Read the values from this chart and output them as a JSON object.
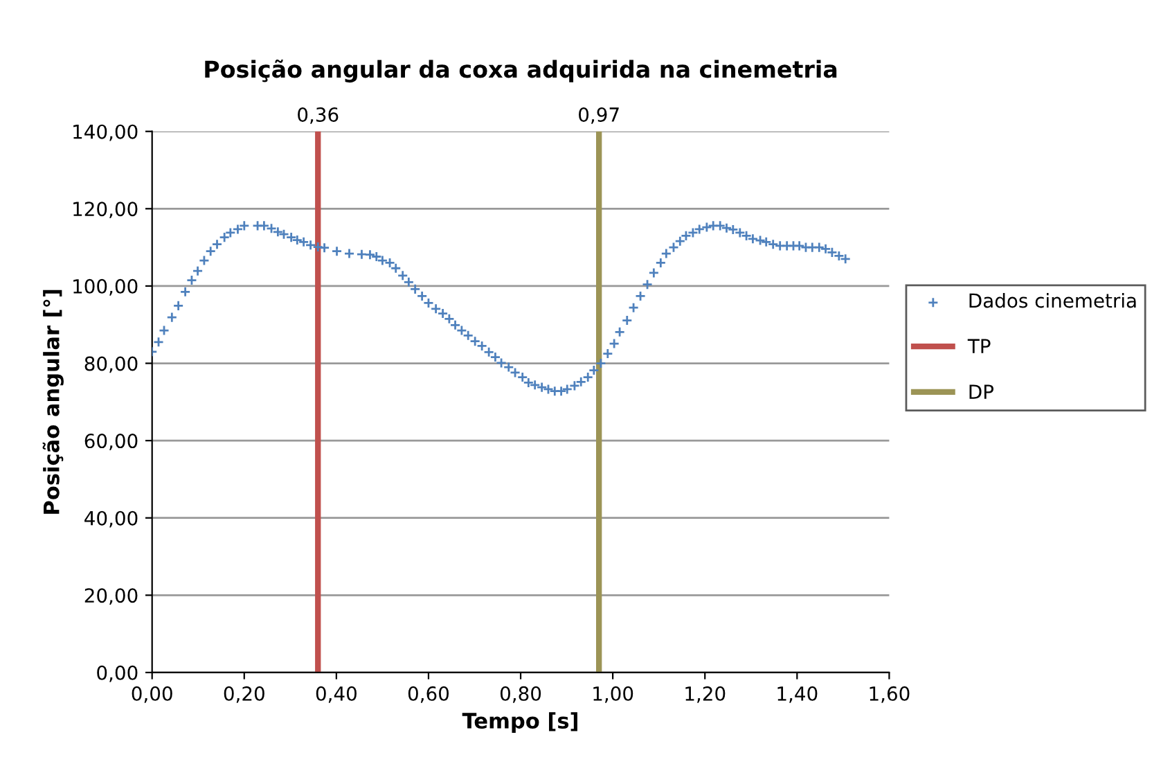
{
  "chart_data": {
    "type": "scatter",
    "title": "Posição angular da coxa adquirida na cinemetria",
    "xlabel": "Tempo [s]",
    "ylabel": "Posição angular [°]",
    "xlim": [
      0,
      1.6
    ],
    "ylim": [
      0,
      140
    ],
    "xticks": [
      {
        "value": 0,
        "label": "0,00"
      },
      {
        "value": 0.2,
        "label": "0,20"
      },
      {
        "value": 0.4,
        "label": "0,40"
      },
      {
        "value": 0.6,
        "label": "0,60"
      },
      {
        "value": 0.8,
        "label": "0,80"
      },
      {
        "value": 1.0,
        "label": "1,00"
      },
      {
        "value": 1.2,
        "label": "1,20"
      },
      {
        "value": 1.4,
        "label": "1,40"
      },
      {
        "value": 1.6,
        "label": "1,60"
      }
    ],
    "yticks": [
      {
        "value": 0,
        "label": "0,00"
      },
      {
        "value": 20,
        "label": "20,00"
      },
      {
        "value": 40,
        "label": "40,00"
      },
      {
        "value": 60,
        "label": "60,00"
      },
      {
        "value": 80,
        "label": "80,00"
      },
      {
        "value": 100,
        "label": "100,00"
      },
      {
        "value": 120,
        "label": "120,00"
      },
      {
        "value": 140,
        "label": "140,00"
      }
    ],
    "grid": "y",
    "legend": "right",
    "series": [
      {
        "name": "Dados cinemetria",
        "marker": "cross",
        "color": "#4f81bd",
        "x": [
          0,
          0.014,
          0.026,
          0.043,
          0.057,
          0.072,
          0.086,
          0.099,
          0.113,
          0.127,
          0.141,
          0.157,
          0.17,
          0.186,
          0.2,
          0.229,
          0.243,
          0.259,
          0.273,
          0.286,
          0.302,
          0.315,
          0.329,
          0.344,
          0.36,
          0.374,
          0.401,
          0.428,
          0.455,
          0.473,
          0.487,
          0.5,
          0.516,
          0.529,
          0.544,
          0.557,
          0.571,
          0.586,
          0.6,
          0.616,
          0.631,
          0.645,
          0.658,
          0.672,
          0.686,
          0.701,
          0.716,
          0.731,
          0.745,
          0.758,
          0.774,
          0.788,
          0.804,
          0.817,
          0.831,
          0.846,
          0.86,
          0.874,
          0.888,
          0.901,
          0.917,
          0.931,
          0.946,
          0.959,
          0.974,
          0.989,
          1.003,
          1.015,
          1.031,
          1.045,
          1.06,
          1.075,
          1.089,
          1.104,
          1.116,
          1.132,
          1.146,
          1.159,
          1.174,
          1.188,
          1.204,
          1.218,
          1.233,
          1.247,
          1.261,
          1.276,
          1.29,
          1.304,
          1.32,
          1.333,
          1.348,
          1.363,
          1.378,
          1.392,
          1.405,
          1.419,
          1.433,
          1.448,
          1.462,
          1.476,
          1.491,
          1.505
        ],
        "values": [
          83.0,
          85.5,
          88.5,
          91.9,
          94.9,
          98.5,
          101.5,
          103.9,
          106.6,
          109.0,
          110.8,
          112.6,
          113.8,
          114.7,
          115.6,
          115.6,
          115.6,
          114.9,
          114.0,
          113.4,
          112.6,
          111.9,
          111.4,
          110.6,
          110.1,
          109.9,
          109.0,
          108.4,
          108.2,
          108.1,
          107.6,
          106.6,
          106.0,
          104.6,
          102.7,
          101.0,
          99.2,
          97.4,
          95.6,
          94.1,
          92.9,
          91.5,
          89.9,
          88.5,
          87.2,
          85.7,
          84.5,
          82.9,
          81.6,
          80.1,
          79.0,
          77.6,
          76.4,
          75.0,
          74.4,
          73.8,
          73.3,
          72.8,
          72.8,
          73.3,
          74.2,
          75.2,
          76.4,
          78.2,
          80.0,
          82.5,
          85.1,
          88.1,
          91.1,
          94.4,
          97.4,
          100.4,
          103.4,
          106.0,
          108.4,
          110.0,
          111.6,
          113.0,
          113.8,
          114.7,
          115.2,
          115.6,
          115.6,
          115.0,
          114.6,
          113.8,
          113.0,
          112.2,
          111.8,
          111.4,
          110.8,
          110.4,
          110.4,
          110.4,
          110.4,
          110.0,
          110.0,
          110.0,
          109.6,
          108.7,
          107.8,
          107.0
        ]
      },
      {
        "name": "TP",
        "type": "line",
        "color": "#c0504d",
        "x": [
          0.36,
          0.36
        ],
        "values": [
          0,
          140
        ]
      },
      {
        "name": "DP",
        "type": "line",
        "color": "#9c9456",
        "x": [
          0.97,
          0.97
        ],
        "values": [
          0,
          140
        ]
      }
    ],
    "annotations": [
      {
        "text": "0,36",
        "x": 0.36,
        "y": 140
      },
      {
        "text": "0,97",
        "x": 0.97,
        "y": 140
      }
    ]
  }
}
